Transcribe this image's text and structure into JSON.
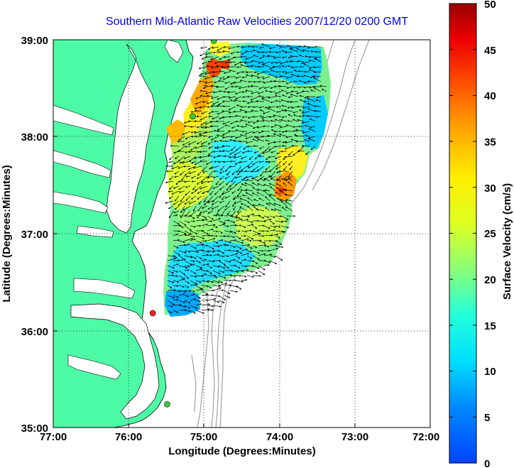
{
  "title": "Southern Mid-Atlantic Raw Velocities 2007/12/20 0200 GMT",
  "x_axis": {
    "label": "Longitude (Degrees:Minutes)",
    "ticks": [
      "77:00",
      "76:00",
      "75:00",
      "74:00",
      "73:00",
      "72:00"
    ]
  },
  "y_axis": {
    "label": "Latitude (Degrees:Minutes)",
    "ticks": [
      "39:00",
      "38:00",
      "37:00",
      "36:00",
      "35:00"
    ]
  },
  "colorbar": {
    "label": "Surface Velocity (cm/s)",
    "ticks": [
      "50",
      "45",
      "40",
      "35",
      "30",
      "25",
      "20",
      "15",
      "10",
      "5",
      "0"
    ],
    "min": 0,
    "max": 50
  },
  "colors": {
    "land": "#4dfaa6",
    "water": "#ffffff",
    "title": "#0000ee",
    "station_green": "#33cc33",
    "station_red": "#ff2020"
  },
  "stations": [
    {
      "color": "green",
      "lon": -74.87,
      "lat": 38.99
    },
    {
      "color": "green",
      "lon": -75.15,
      "lat": 38.21
    },
    {
      "color": "red",
      "lon": -75.68,
      "lat": 36.18
    },
    {
      "color": "green",
      "lon": -75.49,
      "lat": 35.24
    }
  ]
}
